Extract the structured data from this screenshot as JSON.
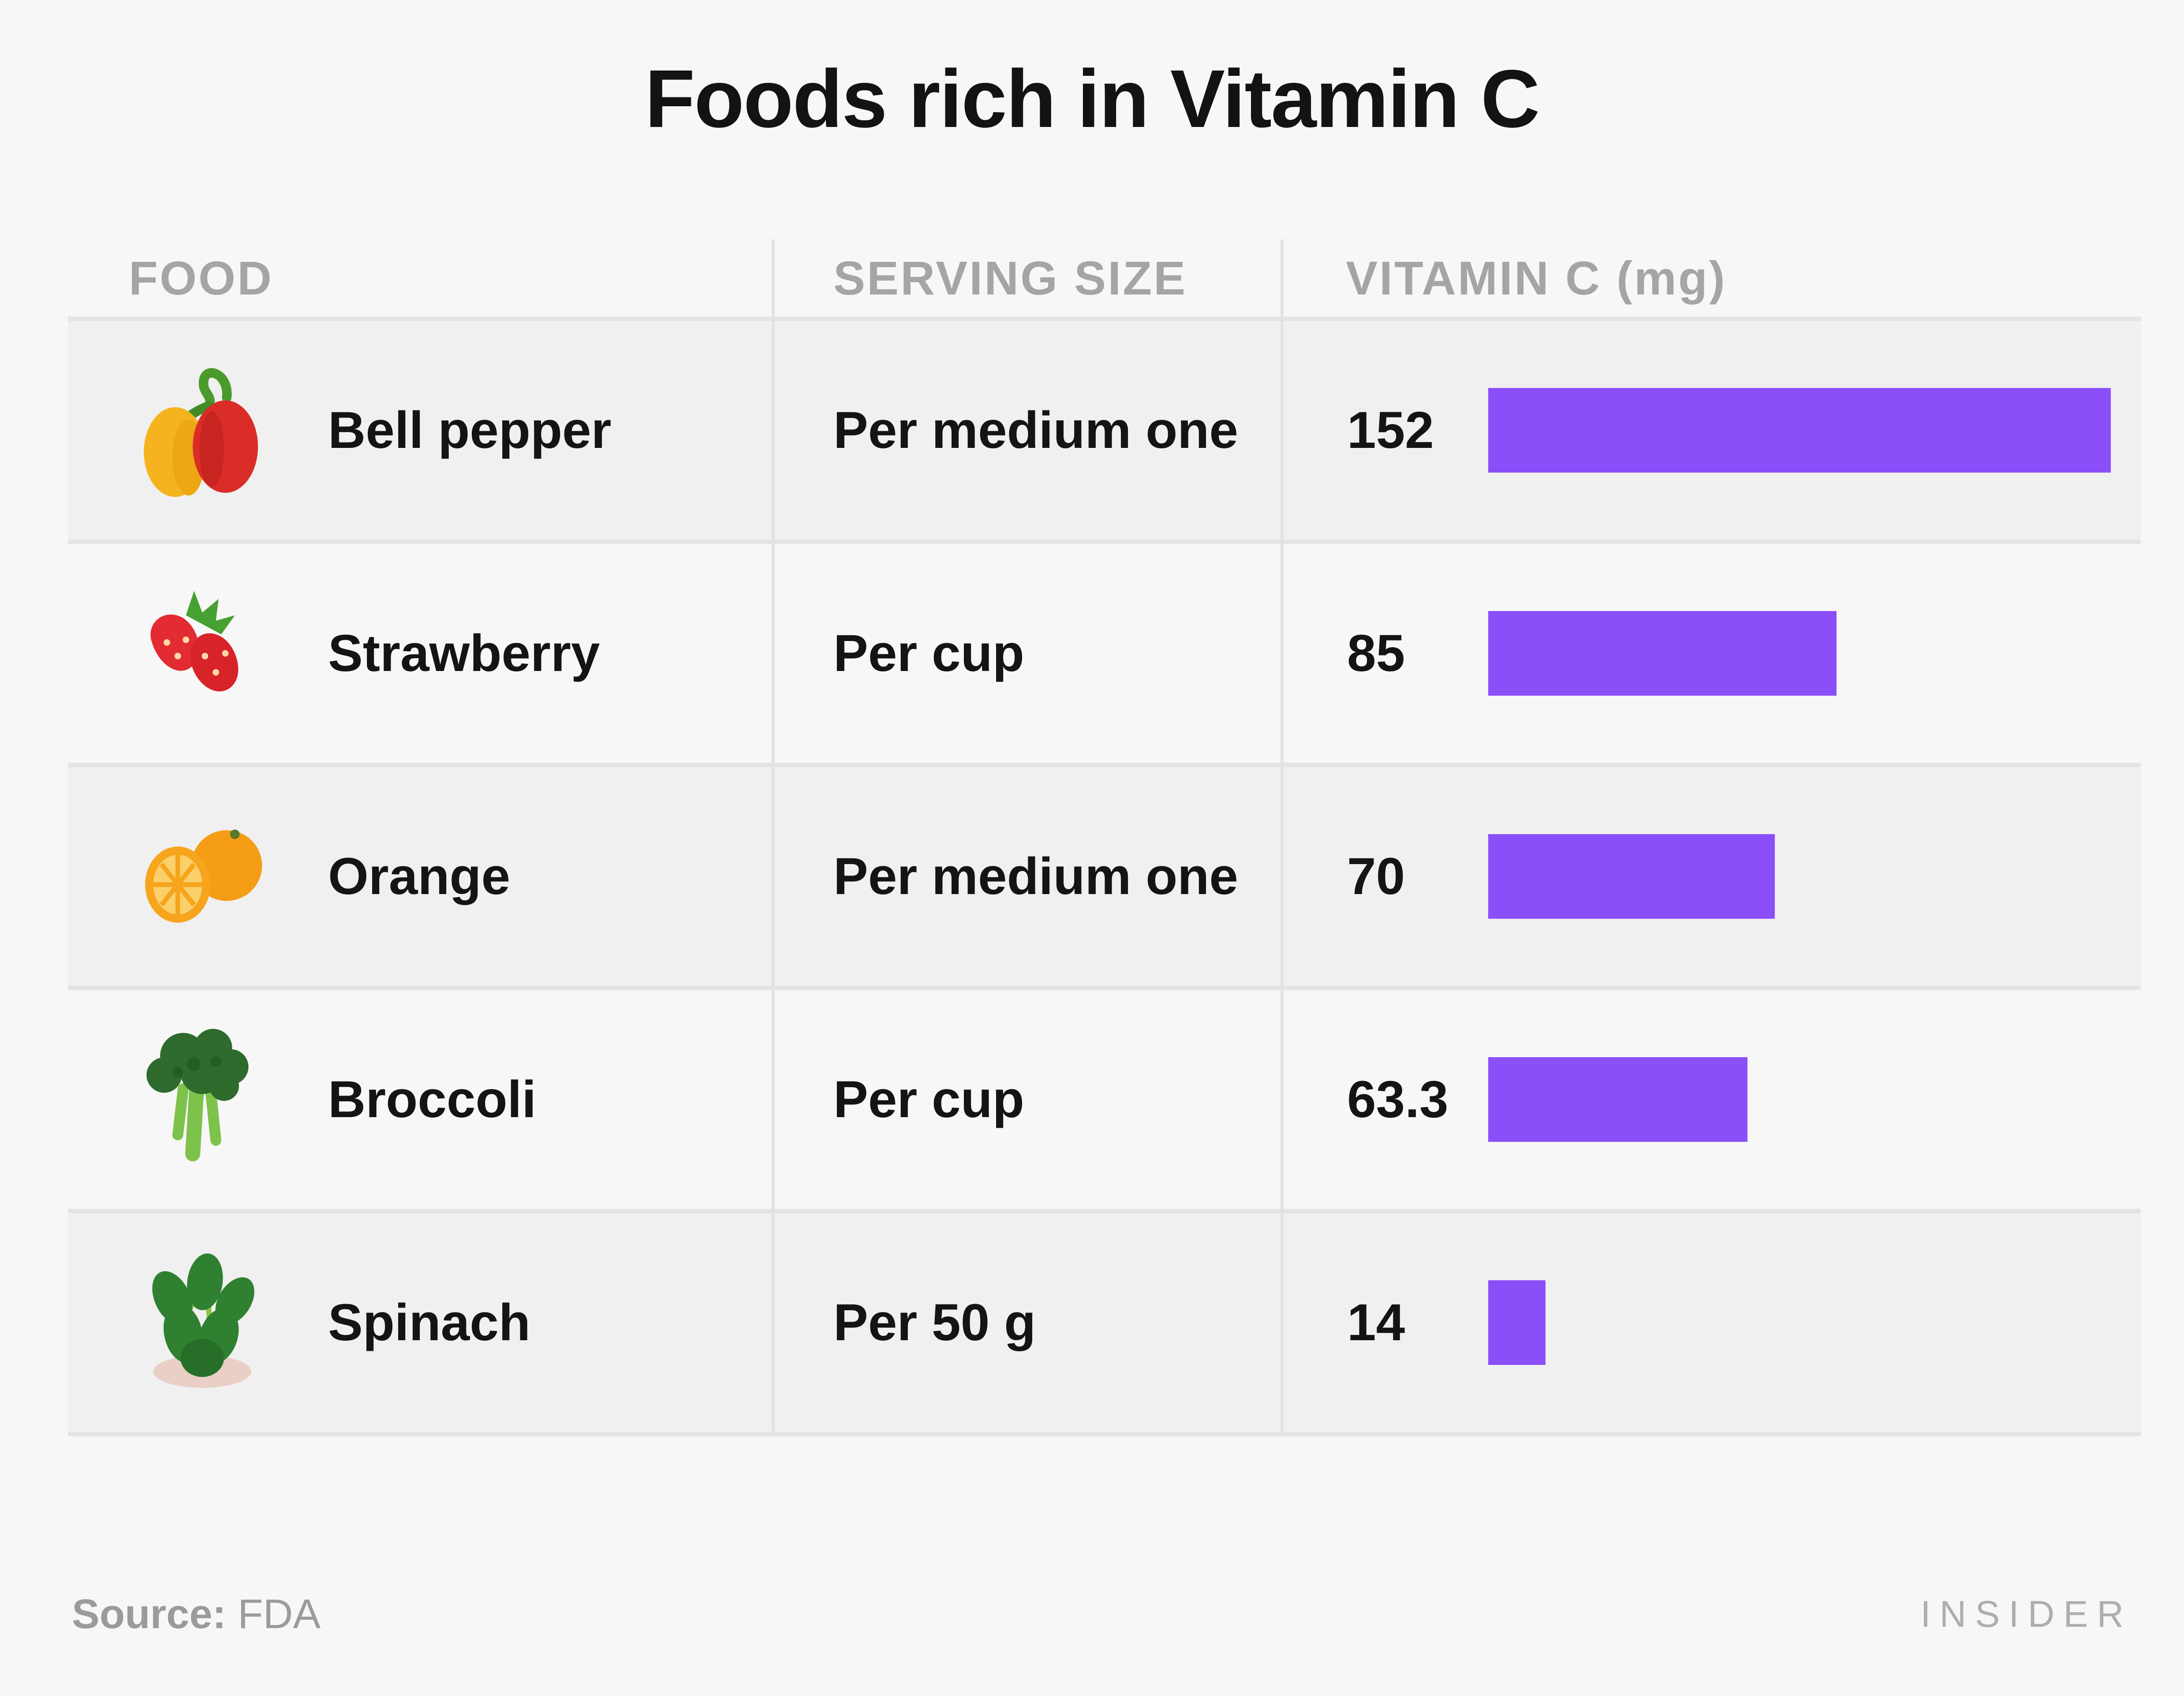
{
  "title": "Foods rich in Vitamin C",
  "table": {
    "columns": [
      "FOOD",
      "SERVING SIZE",
      "VITAMIN C (mg)"
    ]
  },
  "chart_data": {
    "type": "bar",
    "orientation": "horizontal",
    "title": "Foods rich in Vitamin C",
    "categories": [
      "Bell pepper",
      "Strawberry",
      "Orange",
      "Broccoli",
      "Spinach"
    ],
    "values": [
      152,
      85,
      70,
      63.3,
      14
    ],
    "value_labels": [
      "152",
      "85",
      "70",
      "63.3",
      "14"
    ],
    "serving_sizes": [
      "Per medium one",
      "Per cup",
      "Per medium one",
      "Per cup",
      "Per 50 g"
    ],
    "icons": [
      "bell-pepper-image",
      "strawberry-image",
      "orange-image",
      "broccoli-image",
      "spinach-image"
    ],
    "unit": "mg",
    "xlim": [
      0,
      160
    ],
    "grid": false,
    "legend": "none",
    "bar_color": "#8b4ffa"
  },
  "footer": {
    "source_label": "Source:",
    "source_value": "FDA",
    "brand": "INSIDER"
  },
  "colors": {
    "page_bg": "#f7f7f7",
    "row_alt_bg": "#f0f0f0",
    "row_border": "#e4e4e4",
    "column_divider": "#e2e2e2",
    "bar": "#8b4ffa",
    "title_text": "#131313",
    "header_text": "#a5a5a5",
    "muted_text": "#9b9b9b",
    "brand_text": "#aeaeae"
  }
}
